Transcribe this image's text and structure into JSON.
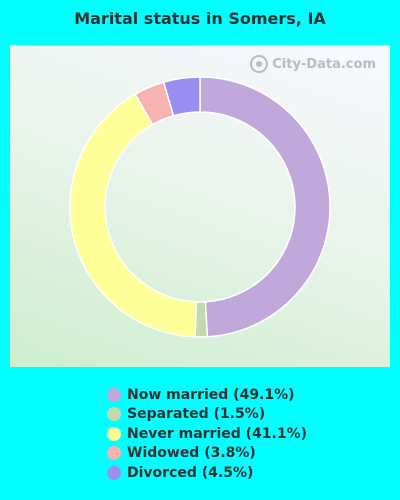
{
  "title": "Marital status in Somers, IA",
  "watermark": "City-Data.com",
  "chart_data": {
    "type": "pie",
    "title": "Marital status in Somers, IA",
    "donut": true,
    "slices": [
      {
        "label": "Now married (49.1%)",
        "value": 49.1,
        "color": "#c0a8da"
      },
      {
        "label": "Separated (1.5%)",
        "value": 1.5,
        "color": "#c4d8b0"
      },
      {
        "label": "Never married (41.1%)",
        "value": 41.1,
        "color": "#ffff99"
      },
      {
        "label": "Widowed (3.8%)",
        "value": 3.8,
        "color": "#f8b2b2"
      },
      {
        "label": "Divorced (4.5%)",
        "value": 4.5,
        "color": "#9a8ef0"
      }
    ],
    "legend": "bottom"
  }
}
